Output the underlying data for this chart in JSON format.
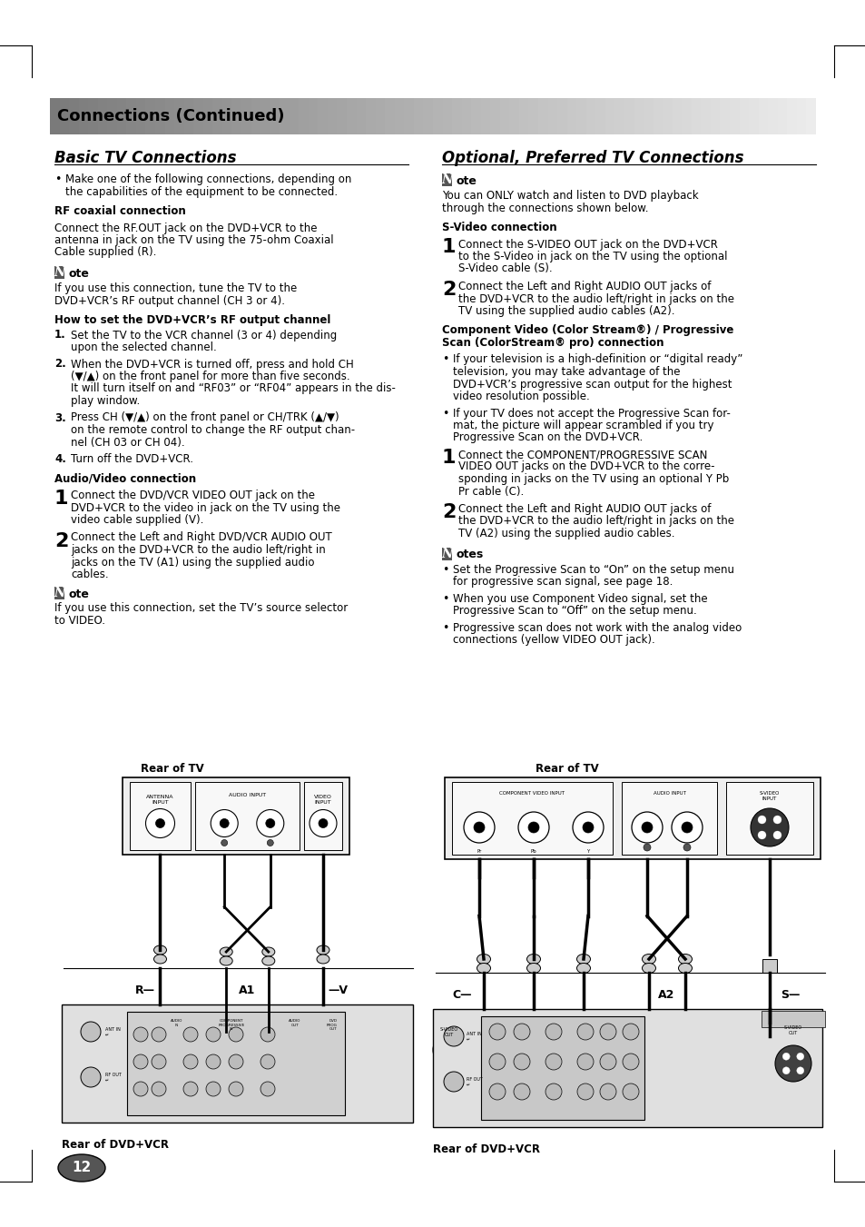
{
  "page_bg": "#ffffff",
  "header_text": "Connections (Continued)",
  "section1_title": "Basic TV Connections",
  "section2_title": "Optional, Preferred TV Connections",
  "page_number": "12",
  "pw": 954,
  "ph": 1351
}
